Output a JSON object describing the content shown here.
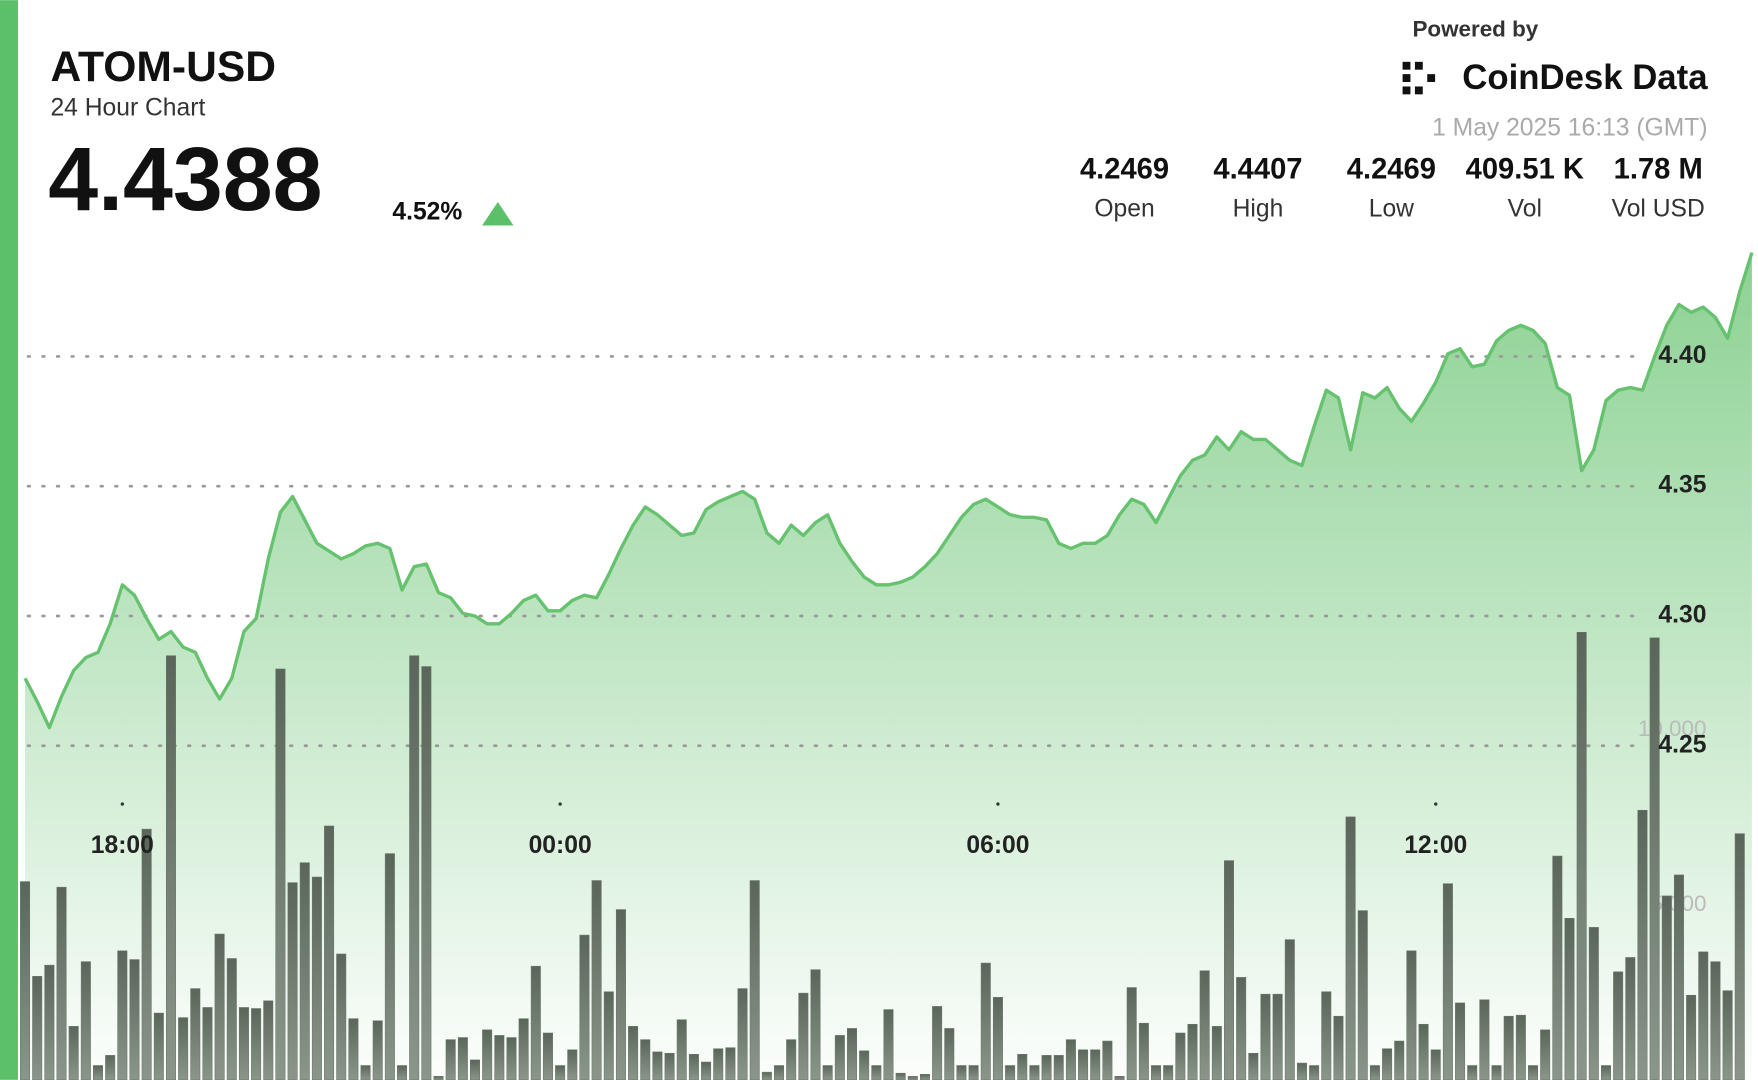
{
  "chart_data": {
    "type": "line",
    "title": "ATOM-USD",
    "subtitle": "24 Hour Chart",
    "last_price": 4.4388,
    "change": {
      "value": 4.52,
      "label": "4.52%"
    },
    "source": "Powered by",
    "brand": "CoinDesk Data",
    "timestamp": "1 May 2025 16:13 (GMT)",
    "stats": [
      {
        "name": "Open",
        "value": 4.2469
      },
      {
        "name": "High",
        "value": 4.4407
      },
      {
        "name": "Low",
        "value": 4.2469
      },
      {
        "name": "Vol",
        "value": {
          "value": 409510,
          "label": "409.51 K"
        }
      },
      {
        "name": "Vol USD",
        "value": {
          "value": 1780000,
          "label": "1.78 M"
        }
      }
    ],
    "x": [
      "16:40",
      "16:50",
      "17:00",
      "17:10",
      "17:20",
      "17:30",
      "17:40",
      "17:50",
      "18:00",
      "18:10",
      "18:20",
      "18:30",
      "18:40",
      "18:50",
      "19:00",
      "19:10",
      "19:20",
      "19:30",
      "19:40",
      "19:50",
      "20:00",
      "20:10",
      "20:20",
      "20:30",
      "20:40",
      "20:50",
      "21:00",
      "21:10",
      "21:20",
      "21:30",
      "21:40",
      "21:50",
      "22:00",
      "22:10",
      "22:20",
      "22:30",
      "22:40",
      "22:50",
      "23:00",
      "23:10",
      "23:20",
      "23:30",
      "23:40",
      "23:50",
      "00:00",
      "00:10",
      "00:20",
      "00:30",
      "00:40",
      "00:50",
      "01:00",
      "01:10",
      "01:20",
      "01:30",
      "01:40",
      "01:50",
      "02:00",
      "02:10",
      "02:20",
      "02:30",
      "02:40",
      "02:50",
      "03:00",
      "03:10",
      "03:20",
      "03:30",
      "03:40",
      "03:50",
      "04:00",
      "04:10",
      "04:20",
      "04:30",
      "04:40",
      "04:50",
      "05:00",
      "05:10",
      "05:20",
      "05:30",
      "05:40",
      "05:50",
      "06:00",
      "06:10",
      "06:20",
      "06:30",
      "06:40",
      "06:50",
      "07:00",
      "07:10",
      "07:20",
      "07:30",
      "07:40",
      "07:50",
      "08:00",
      "08:10",
      "08:20",
      "08:30",
      "08:40",
      "08:50",
      "09:00",
      "09:10",
      "09:20",
      "09:30",
      "09:40",
      "09:50",
      "10:00",
      "10:10",
      "10:20",
      "10:30",
      "10:40",
      "10:50",
      "11:00",
      "11:10",
      "11:20",
      "11:30",
      "11:40",
      "11:50",
      "12:00",
      "12:10",
      "12:20",
      "12:30",
      "12:40",
      "12:50",
      "13:00",
      "13:10",
      "13:20",
      "13:30",
      "13:40",
      "13:50",
      "14:00",
      "14:10",
      "14:20",
      "14:30",
      "14:40",
      "14:50",
      "15:00",
      "15:10",
      "15:20",
      "15:30",
      "15:40",
      "15:50",
      "16:00",
      "16:10",
      "16:20"
    ],
    "series": [
      {
        "type": "line",
        "color": "#66c26f",
        "values": [
          4.276,
          4.267,
          4.257,
          4.269,
          4.279,
          4.284,
          4.286,
          4.297,
          4.312,
          4.308,
          4.299,
          4.291,
          4.294,
          4.288,
          4.286,
          4.276,
          4.268,
          4.276,
          4.294,
          4.299,
          4.322,
          4.34,
          4.346,
          4.337,
          4.328,
          4.325,
          4.322,
          4.324,
          4.327,
          4.328,
          4.326,
          4.31,
          4.319,
          4.32,
          4.309,
          4.307,
          4.301,
          4.3,
          4.297,
          4.297,
          4.301,
          4.306,
          4.308,
          4.302,
          4.302,
          4.306,
          4.308,
          4.307,
          4.316,
          4.326,
          4.335,
          4.342,
          4.339,
          4.335,
          4.331,
          4.332,
          4.341,
          4.344,
          4.346,
          4.348,
          4.345,
          4.332,
          4.328,
          4.335,
          4.331,
          4.336,
          4.339,
          4.328,
          4.321,
          4.315,
          4.312,
          4.312,
          4.313,
          4.315,
          4.319,
          4.324,
          4.331,
          4.338,
          4.343,
          4.345,
          4.342,
          4.339,
          4.338,
          4.338,
          4.337,
          4.328,
          4.326,
          4.328,
          4.328,
          4.331,
          4.339,
          4.345,
          4.343,
          4.336,
          4.345,
          4.354,
          4.36,
          4.362,
          4.369,
          4.364,
          4.371,
          4.368,
          4.368,
          4.364,
          4.36,
          4.358,
          4.373,
          4.387,
          4.384,
          4.364,
          4.386,
          4.384,
          4.388,
          4.38,
          4.375,
          4.382,
          4.39,
          4.401,
          4.403,
          4.396,
          4.397,
          4.406,
          4.41,
          4.412,
          4.41,
          4.405,
          4.388,
          4.385,
          4.356,
          4.364,
          4.383,
          4.387,
          4.388,
          4.387,
          4.4,
          4.412,
          4.42,
          4.417,
          4.419,
          4.415,
          4.407,
          4.425,
          4.44
        ]
      },
      {
        "type": "bar",
        "axis": "y2",
        "color": "#6b776b",
        "values": [
          5670,
          2960,
          3280,
          5510,
          1530,
          3380,
          410,
          700,
          3690,
          3440,
          7170,
          1910,
          12130,
          1780,
          2610,
          2070,
          4170,
          3470,
          2070,
          2040,
          2260,
          11750,
          5640,
          6210,
          5800,
          7260,
          3600,
          1750,
          410,
          1690,
          6470,
          410,
          12130,
          11820,
          100,
          1150,
          1210,
          570,
          1430,
          1270,
          1210,
          1750,
          3250,
          1340,
          410,
          860,
          4140,
          5700,
          2520,
          4870,
          1530,
          1150,
          800,
          760,
          1720,
          730,
          510,
          890,
          920,
          2610,
          5700,
          220,
          410,
          1150,
          2480,
          3150,
          410,
          1270,
          1470,
          830,
          410,
          2010,
          190,
          100,
          160,
          2100,
          1470,
          410,
          410,
          3340,
          2360,
          410,
          730,
          410,
          700,
          700,
          1150,
          860,
          860,
          1110,
          100,
          2640,
          1620,
          410,
          410,
          1340,
          1590,
          3120,
          1530,
          6270,
          2930,
          760,
          2450,
          2450,
          4010,
          480,
          410,
          2520,
          1820,
          7520,
          4840,
          410,
          890,
          1110,
          3690,
          1590,
          860,
          5610,
          2200,
          410,
          2290,
          410,
          1820,
          1850,
          410,
          1430,
          6400,
          4620,
          12800,
          4360,
          410,
          3090,
          3500,
          7710,
          12640,
          5260,
          5860,
          2420,
          3660,
          3380,
          2550,
          7040,
          null
        ]
      }
    ],
    "xlim": [
      "16:36",
      "16:25"
    ],
    "xticks": [
      "18:00",
      "00:00",
      "06:00",
      "12:00"
    ],
    "ylim": [
      4.12,
      4.45
    ],
    "yticks": [
      4.25,
      {
        "value": 4.3,
        "label": "4.30"
      },
      4.35,
      {
        "value": 4.4,
        "label": "4.40"
      }
    ],
    "y2lim": [
      0,
      24400
    ],
    "y2ticks": [
      {
        "value": 5000,
        "label": "5,000"
      },
      {
        "value": 10000,
        "label": "10,000"
      }
    ],
    "grid": true
  }
}
